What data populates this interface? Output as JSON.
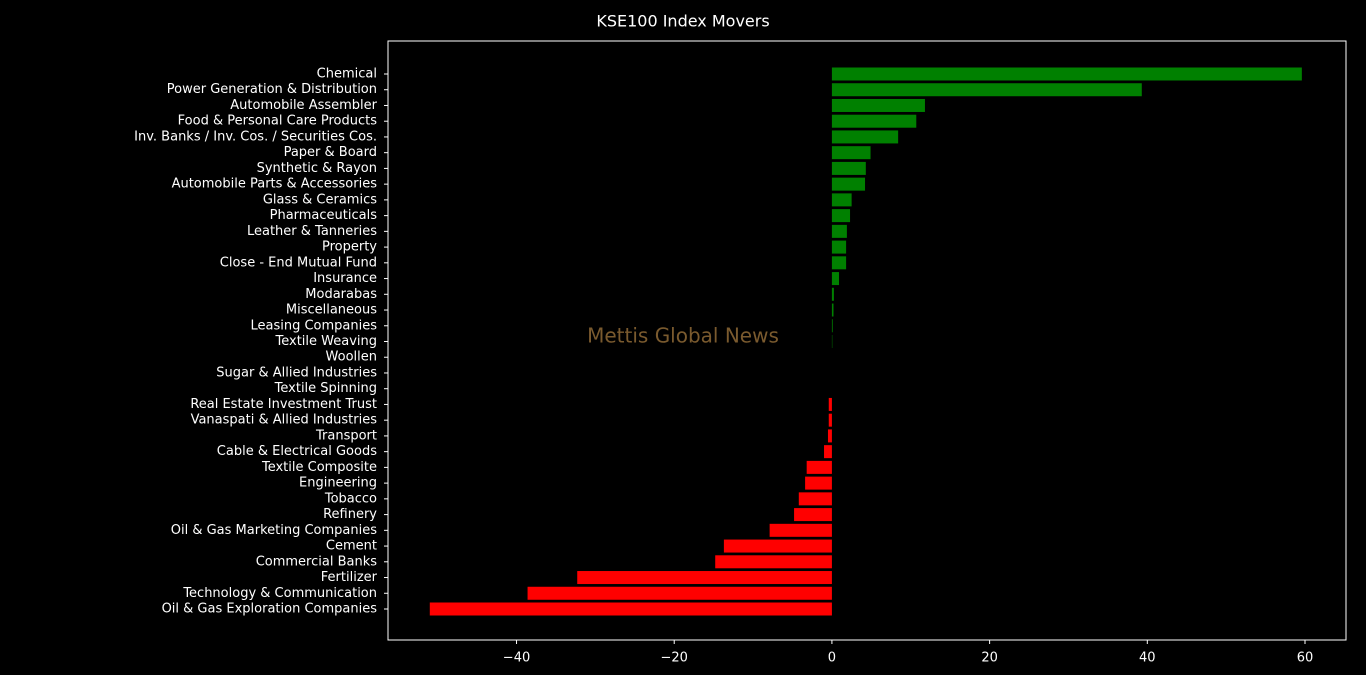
{
  "chart_data": {
    "type": "barh",
    "title": "KSE100 Index Movers",
    "watermark": "Mettis Global News",
    "categories": [
      "Chemical",
      "Power Generation & Distribution",
      "Automobile Assembler",
      "Food & Personal Care Products",
      "Inv. Banks / Inv. Cos. / Securities Cos.",
      "Paper & Board",
      "Synthetic & Rayon",
      "Automobile Parts & Accessories",
      "Glass & Ceramics",
      "Pharmaceuticals",
      "Leather & Tanneries",
      "Property",
      "Close - End Mutual Fund",
      "Insurance",
      "Modarabas",
      "Miscellaneous",
      "Leasing Companies",
      "Textile Weaving",
      "Woollen",
      "Sugar & Allied Industries",
      "Textile Spinning",
      "Real Estate Investment Trust",
      "Vanaspati & Allied Industries",
      "Transport",
      "Cable & Electrical Goods",
      "Textile Composite",
      "Engineering",
      "Tobacco",
      "Refinery",
      "Oil & Gas Marketing Companies",
      "Cement",
      "Commercial Banks",
      "Fertilizer",
      "Technology & Communication",
      "Oil & Gas Exploration Companies"
    ],
    "values": [
      59.6,
      39.3,
      11.8,
      10.7,
      8.4,
      4.9,
      4.3,
      4.2,
      2.5,
      2.3,
      1.9,
      1.8,
      1.8,
      0.9,
      0.25,
      0.2,
      0.1,
      0.05,
      0,
      0,
      0,
      -0.4,
      -0.4,
      -0.5,
      -1.0,
      -3.2,
      -3.4,
      -4.2,
      -4.8,
      -7.9,
      -13.7,
      -14.8,
      -32.3,
      -38.6,
      -51.0
    ],
    "color_positive": "#008000",
    "color_negative": "#ff0000",
    "xlim": [
      -56.3,
      65.2
    ],
    "xticks": [
      {
        "value": -40,
        "label": "−40"
      },
      {
        "value": -20,
        "label": "−20"
      },
      0,
      20,
      40,
      60
    ],
    "grid": false
  }
}
